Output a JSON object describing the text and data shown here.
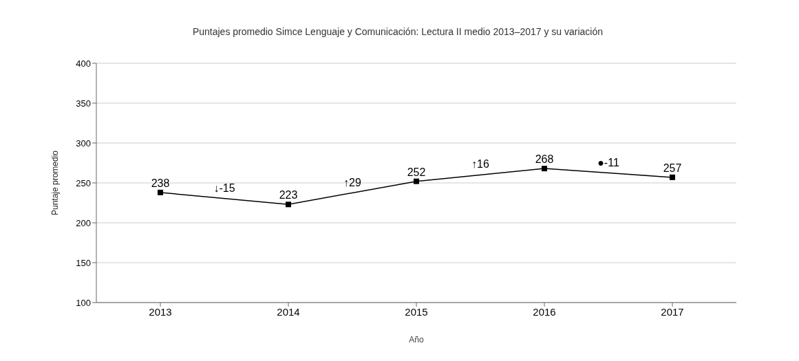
{
  "chart_data": {
    "type": "line",
    "title": "Puntajes promedio Simce Lenguaje y Comunicación: Lectura II medio 2013–2017 y su variación",
    "xlabel": "Año",
    "ylabel": "Puntaje promedio",
    "categories": [
      "2013",
      "2014",
      "2015",
      "2016",
      "2017"
    ],
    "series": [
      {
        "color": "#000000",
        "values": [
          238,
          223,
          252,
          268,
          257
        ]
      }
    ],
    "ylim": [
      100,
      400
    ],
    "yticks": [
      100,
      150,
      200,
      250,
      300,
      350,
      400
    ],
    "grid": "y",
    "marker": "square",
    "line_style": "solid",
    "data_labels": true,
    "annotations": [
      "↓-15",
      "↑29",
      "↑16",
      "●-11"
    ]
  }
}
